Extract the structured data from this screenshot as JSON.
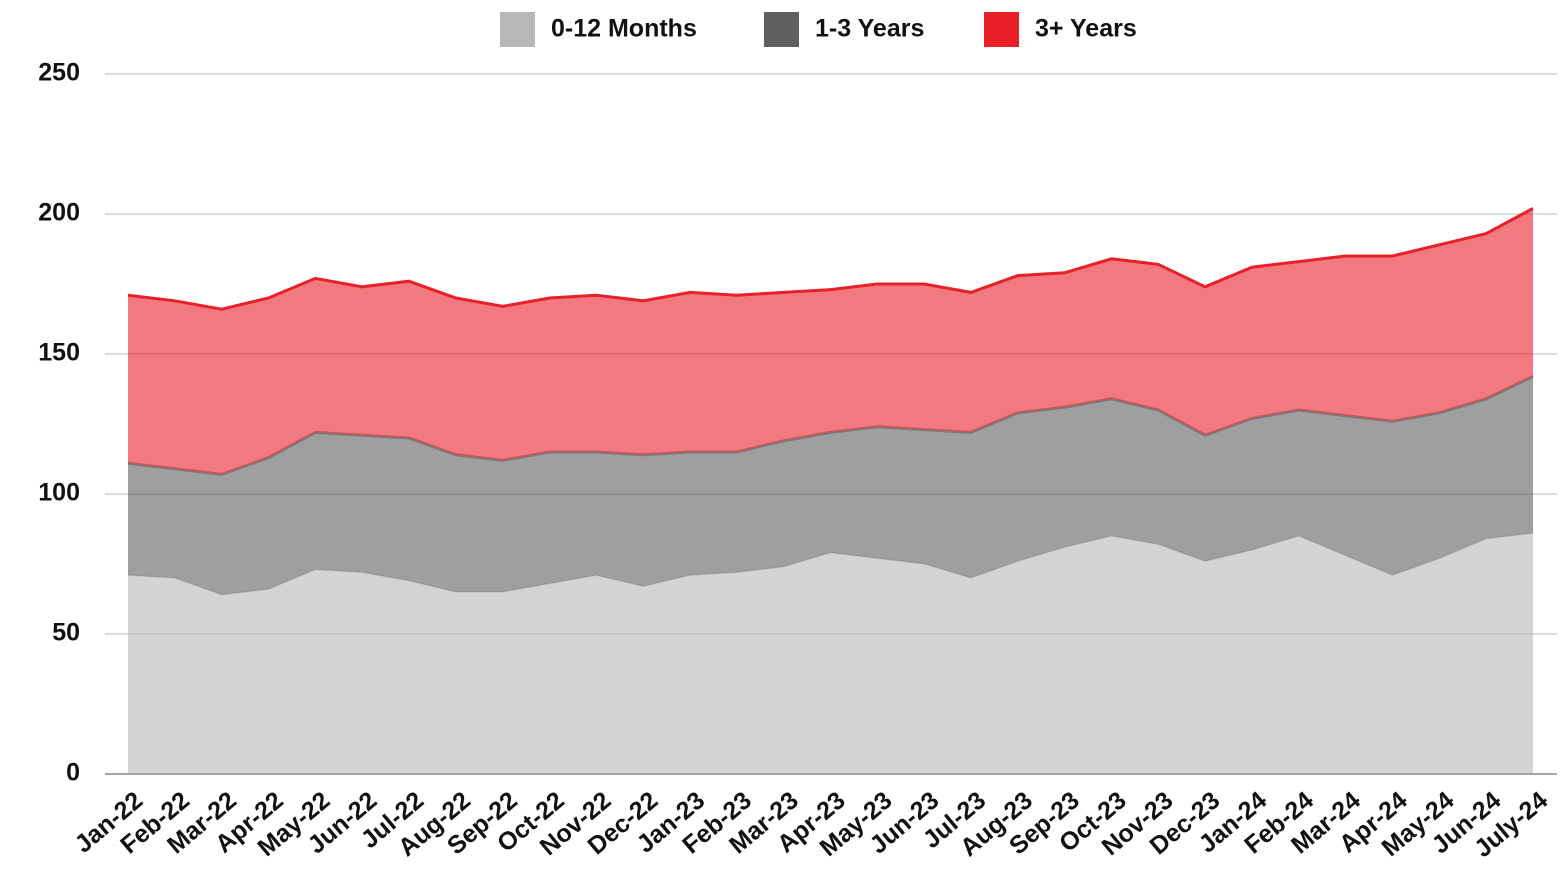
{
  "chart_data": {
    "type": "stacked_area",
    "categories": [
      "Jan-22",
      "Feb-22",
      "Mar-22",
      "Apr-22",
      "May-22",
      "Jun-22",
      "Jul-22",
      "Aug-22",
      "Sep-22",
      "Oct-22",
      "Nov-22",
      "Dec-22",
      "Jan-23",
      "Feb-23",
      "Mar-23",
      "Apr-23",
      "May-23",
      "Jun-23",
      "Jul-23",
      "Aug-23",
      "Sep-23",
      "Oct-23",
      "Nov-23",
      "Dec-23",
      "Jan-24",
      "Feb-24",
      "Mar-24",
      "Apr-24",
      "May-24",
      "Jun-24",
      "July-24"
    ],
    "series": [
      {
        "name": "0-12 Months",
        "color": "#b8b8b8",
        "values": [
          71,
          70,
          64,
          66,
          73,
          72,
          69,
          65,
          65,
          68,
          71,
          67,
          71,
          72,
          74,
          79,
          77,
          75,
          70,
          76,
          81,
          85,
          82,
          76,
          80,
          85,
          78,
          71,
          77,
          84,
          86
        ]
      },
      {
        "name": "1-3 Years",
        "color": "#5f5f5f",
        "values": [
          40,
          39,
          43,
          47,
          49,
          49,
          51,
          49,
          47,
          47,
          44,
          47,
          44,
          43,
          45,
          43,
          47,
          48,
          52,
          53,
          50,
          49,
          48,
          45,
          47,
          45,
          50,
          55,
          52,
          50,
          56
        ]
      },
      {
        "name": "3+ Years",
        "color": "#e8202a",
        "values": [
          60,
          60,
          59,
          57,
          55,
          53,
          56,
          56,
          55,
          55,
          56,
          55,
          57,
          56,
          53,
          51,
          51,
          52,
          50,
          49,
          48,
          50,
          52,
          53,
          54,
          53,
          57,
          59,
          60,
          59,
          60
        ]
      }
    ],
    "ylim": [
      0,
      250
    ],
    "yticks": [
      0,
      50,
      100,
      150,
      200,
      250
    ],
    "grid": true,
    "legend": "top"
  }
}
